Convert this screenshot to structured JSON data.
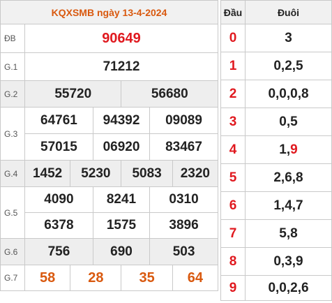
{
  "title": "KQXSMB ngày 13-4-2024",
  "prizes": {
    "db": {
      "label": "ĐB",
      "numbers": [
        "90649"
      ]
    },
    "g1": {
      "label": "G.1",
      "numbers": [
        "71212"
      ]
    },
    "g2": {
      "label": "G.2",
      "numbers": [
        "55720",
        "56680"
      ]
    },
    "g3": {
      "label": "G.3",
      "numbers": [
        "64761",
        "94392",
        "09089",
        "57015",
        "06920",
        "83467"
      ]
    },
    "g4": {
      "label": "G.4",
      "numbers": [
        "1452",
        "5230",
        "5083",
        "2320"
      ]
    },
    "g5": {
      "label": "G.5",
      "numbers": [
        "4090",
        "8241",
        "0310",
        "6378",
        "1575",
        "3896"
      ]
    },
    "g6": {
      "label": "G.6",
      "numbers": [
        "756",
        "690",
        "503"
      ]
    },
    "g7": {
      "label": "G.7",
      "numbers": [
        "58",
        "28",
        "35",
        "64"
      ]
    }
  },
  "loto": {
    "head_label": "Đầu",
    "tail_label": "Đuôi",
    "rows": [
      {
        "head": "0",
        "tail": "3"
      },
      {
        "head": "1",
        "tail": "0,2,5"
      },
      {
        "head": "2",
        "tail": "0,0,0,8"
      },
      {
        "head": "3",
        "tail": "0,5"
      },
      {
        "head": "4",
        "tail_prefix": "1,",
        "tail_highlight": "9"
      },
      {
        "head": "5",
        "tail": "2,6,8"
      },
      {
        "head": "6",
        "tail": "1,4,7"
      },
      {
        "head": "7",
        "tail": "5,8"
      },
      {
        "head": "8",
        "tail": "0,3,9"
      },
      {
        "head": "9",
        "tail": "0,0,2,6"
      }
    ]
  },
  "colors": {
    "title": "#d9590f",
    "special": "#e0191f",
    "g7": "#d9590f",
    "loto_head": "#e0191f",
    "shaded_row": "#eeeeee"
  }
}
